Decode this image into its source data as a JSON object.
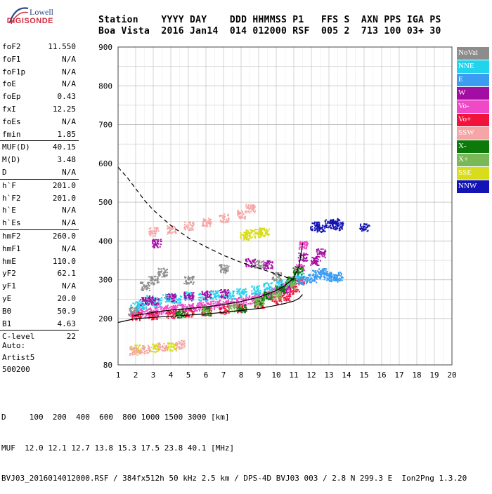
{
  "logo": {
    "brand_top": "Lowell",
    "brand_bottom": "DIGISONDE"
  },
  "header": {
    "line1": "Station    YYYY DAY    DDD HHMMSS P1   FFS S  AXN PPS IGA PS",
    "line2": "Boa Vista  2016 Jan14  014 012000 RSF  005 2  713 100 03+ 30"
  },
  "params": [
    {
      "k": "foF2",
      "v": "11.550"
    },
    {
      "k": "foF1",
      "v": "N/A"
    },
    {
      "k": "foF1p",
      "v": "N/A"
    },
    {
      "k": "foE",
      "v": "N/A"
    },
    {
      "k": "foEp",
      "v": "0.43"
    },
    {
      "k": "fxI",
      "v": "12.25"
    },
    {
      "k": "foEs",
      "v": "N/A"
    },
    {
      "k": "fmin",
      "v": "1.85"
    },
    {
      "sep": true
    },
    {
      "k": "MUF(D)",
      "v": "40.15"
    },
    {
      "k": "M(D)",
      "v": "3.48"
    },
    {
      "k": "D",
      "v": "N/A"
    },
    {
      "sep": true
    },
    {
      "k": "h`F",
      "v": "201.0"
    },
    {
      "k": "h`F2",
      "v": "201.0"
    },
    {
      "k": "h`E",
      "v": "N/A"
    },
    {
      "k": "h`Es",
      "v": "N/A"
    },
    {
      "sep": true
    },
    {
      "k": "hmF2",
      "v": "260.0"
    },
    {
      "k": "hmF1",
      "v": "N/A"
    },
    {
      "k": "hmE",
      "v": "110.0"
    },
    {
      "k": "yF2",
      "v": "62.1"
    },
    {
      "k": "yF1",
      "v": "N/A"
    },
    {
      "k": "yE",
      "v": "20.0"
    },
    {
      "k": "B0",
      "v": "50.9"
    },
    {
      "k": "B1",
      "v": "4.63"
    },
    {
      "sep": true
    },
    {
      "k": "C-level",
      "v": "22"
    }
  ],
  "auto": {
    "line1": "Auto:",
    "line2": "Artist5",
    "line3": "500200"
  },
  "footer": {
    "line1": "D     100  200  400  600  800 1000 1500 3000 [km]",
    "line2": "MUF  12.0 12.1 12.7 13.8 15.3 17.5 23.8 40.1 [MHz]",
    "line3": "BVJ03_2016014012000.RSF / 384fx512h 50 kHz 2.5 km / DPS-4D BVJ03 003 / 2.8 N 299.3 E  Ion2Png 1.3.20"
  },
  "legend": [
    {
      "label": "NoVal",
      "color": "#8c8c8c"
    },
    {
      "label": "NNE",
      "color": "#22d3ee"
    },
    {
      "label": "E",
      "color": "#3b9cf2"
    },
    {
      "label": "W",
      "color": "#a40da4"
    },
    {
      "label": "Vo-",
      "color": "#f049c8"
    },
    {
      "label": "Vo+",
      "color": "#f0143c"
    },
    {
      "label": "SSW",
      "color": "#f5a5a5"
    },
    {
      "label": "X-",
      "color": "#0b7a0b"
    },
    {
      "label": "X+",
      "color": "#79b856"
    },
    {
      "label": "SSE",
      "color": "#d8dc1a"
    },
    {
      "label": "NNW",
      "color": "#1414b4"
    }
  ],
  "chart_data": {
    "type": "scatter",
    "xlim": [
      1,
      20
    ],
    "ylim": [
      80,
      900
    ],
    "x_ticks": [
      1,
      2,
      3,
      4,
      5,
      6,
      7,
      8,
      9,
      10,
      11,
      12,
      13,
      14,
      15,
      16,
      17,
      18,
      19,
      20
    ],
    "y_ticks": [
      80,
      200,
      300,
      400,
      500,
      600,
      700,
      800,
      900
    ],
    "grid": true,
    "series": [
      {
        "name": "Vo-",
        "color": "#f049c8",
        "x": [
          1.9,
          2.5,
          3.0,
          3.5,
          4.0,
          4.5,
          5.0,
          5.5,
          6.0,
          6.5,
          7.0,
          7.5,
          8.0,
          8.5,
          9.0,
          9.5,
          10.0,
          10.5,
          11.0,
          11.3,
          11.5
        ],
        "y": [
          213,
          217,
          220,
          223,
          226,
          228,
          230,
          232,
          234,
          236,
          239,
          242,
          246,
          250,
          256,
          262,
          270,
          282,
          300,
          330,
          390
        ]
      },
      {
        "name": "Vo+",
        "color": "#f0143c",
        "x": [
          2.0,
          3.0,
          4.0,
          5.0,
          6.0,
          7.0,
          8.0,
          9.0,
          10.0,
          10.5,
          11.0,
          11.3
        ],
        "y": [
          208,
          210,
          213,
          216,
          219,
          223,
          228,
          236,
          248,
          258,
          275,
          300
        ]
      },
      {
        "name": "NNE",
        "color": "#22d3ee",
        "x": [
          1.9,
          2.3,
          2.8,
          3.2,
          3.8,
          4.3,
          5.0,
          5.8,
          6.5,
          7.3,
          8.0,
          8.8,
          9.5,
          10.2,
          10.8,
          11.3
        ],
        "y": [
          232,
          238,
          250,
          245,
          255,
          252,
          260,
          258,
          262,
          262,
          268,
          275,
          283,
          292,
          298,
          312
        ]
      },
      {
        "name": "W",
        "color": "#a40da4",
        "x": [
          2.5,
          3.0,
          3.2,
          4.0,
          5.0,
          6.0,
          7.0,
          8.5,
          9.5,
          10.5,
          11.5,
          12.2,
          12.5
        ],
        "y": [
          245,
          248,
          395,
          255,
          258,
          262,
          265,
          345,
          340,
          280,
          360,
          350,
          370
        ]
      },
      {
        "name": "E",
        "color": "#3b9cf2",
        "x": [
          11.5,
          12.0,
          12.3,
          12.6,
          12.9,
          13.2,
          13.5
        ],
        "y": [
          300,
          305,
          315,
          320,
          310,
          305,
          310
        ]
      },
      {
        "name": "NNW",
        "color": "#1414b4",
        "x": [
          12.2,
          12.5,
          13.0,
          13.3,
          13.5,
          15.0
        ],
        "y": [
          440,
          435,
          445,
          450,
          440,
          435
        ]
      },
      {
        "name": "X-",
        "color": "#0b7a0b",
        "x": [
          4.5,
          6.0,
          8.0,
          9.0,
          9.5,
          10.2,
          10.8,
          11.2
        ],
        "y": [
          215,
          220,
          228,
          245,
          260,
          275,
          300,
          325
        ]
      },
      {
        "name": "X+",
        "color": "#79b856",
        "x": [
          6.0,
          7.5,
          9.0,
          10.0,
          10.8
        ],
        "y": [
          222,
          230,
          245,
          262,
          290
        ]
      },
      {
        "name": "SSE",
        "color": "#d8dc1a",
        "x": [
          8.2,
          8.5,
          9.0,
          9.3,
          2.0,
          3.0,
          4.0
        ],
        "y": [
          415,
          420,
          422,
          425,
          122,
          125,
          128
        ]
      },
      {
        "name": "SSW",
        "color": "#f5a5a5",
        "x": [
          3.0,
          4.0,
          5.0,
          6.0,
          7.0,
          8.0,
          8.5,
          1.9,
          2.5,
          3.5,
          4.5
        ],
        "y": [
          425,
          430,
          440,
          450,
          460,
          470,
          485,
          118,
          122,
          128,
          134
        ]
      },
      {
        "name": "NoVal",
        "color": "#8c8c8c",
        "x": [
          1.8,
          2.5,
          3.0,
          3.5,
          5.0,
          7.0,
          9.0,
          10.0
        ],
        "y": [
          220,
          285,
          300,
          320,
          300,
          330,
          340,
          310
        ]
      }
    ],
    "curves": [
      {
        "kind": "profile",
        "style": "solid",
        "x": [
          1.9,
          2.5,
          3.0,
          3.5,
          4.0,
          5.0,
          6.0,
          7.0,
          8.0,
          9.0,
          10.0,
          10.5,
          11.0,
          11.3,
          11.5
        ],
        "y": [
          208,
          212,
          216,
          219,
          222,
          226,
          230,
          236,
          244,
          255,
          272,
          285,
          305,
          335,
          395
        ]
      },
      {
        "kind": "virtual-height",
        "style": "solid",
        "x": [
          1.0,
          2.0,
          3.0,
          4.0,
          5.0,
          6.0,
          7.0,
          8.0,
          9.0,
          10.0,
          10.5,
          11.0,
          11.3,
          11.5
        ],
        "y": [
          190,
          200,
          203,
          206,
          209,
          212,
          216,
          221,
          226,
          234,
          239,
          245,
          252,
          262
        ]
      },
      {
        "kind": "MUF",
        "style": "dashed",
        "x": [
          1.0,
          1.5,
          2.0,
          2.5,
          3.0,
          3.5,
          4.0,
          5.0,
          6.0,
          7.0,
          8.0,
          9.0,
          10.0,
          11.0
        ],
        "y": [
          590,
          565,
          535,
          505,
          480,
          460,
          440,
          408,
          385,
          363,
          345,
          330,
          315,
          300
        ]
      }
    ]
  }
}
